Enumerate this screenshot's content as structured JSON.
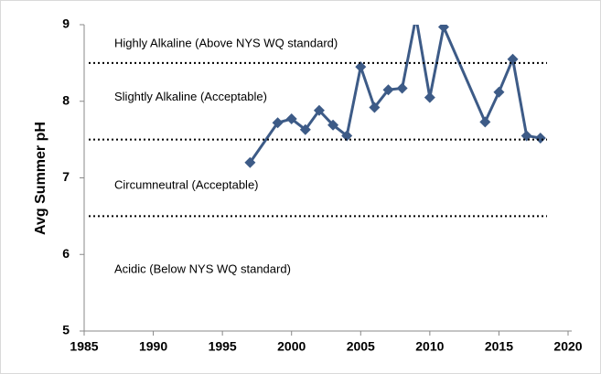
{
  "chart_data": {
    "type": "line",
    "y_label": "Avg Summer pH",
    "x": [
      1997,
      1999,
      2000,
      2001,
      2002,
      2003,
      2004,
      2005,
      2006,
      2007,
      2008,
      2009,
      2010,
      2011,
      2014,
      2015,
      2016,
      2017,
      2018
    ],
    "series": [
      {
        "name": "Avg Summer pH",
        "color": "#3d5b87",
        "values": [
          7.2,
          7.72,
          7.77,
          7.63,
          7.88,
          7.69,
          7.55,
          8.45,
          7.92,
          8.15,
          8.17,
          9.1,
          8.05,
          8.97,
          7.73,
          8.12,
          8.55,
          7.55,
          7.52
        ]
      }
    ],
    "xlim": [
      1985,
      2020
    ],
    "xticks": [
      1985,
      1990,
      1995,
      2000,
      2005,
      2010,
      2015,
      2020
    ],
    "ylim": [
      5,
      9
    ],
    "yticks": [
      5,
      6,
      7,
      8,
      9
    ],
    "reference_lines": [
      8.5,
      7.5,
      6.5
    ],
    "annotations": [
      {
        "text": "Highly Alkaline (Above NYS WQ standard)",
        "y": 8.75
      },
      {
        "text": "Slightly Alkaline (Acceptable)",
        "y": 8.05
      },
      {
        "text": "Circumneutral (Acceptable)",
        "y": 6.9
      },
      {
        "text": "Acidic (Below NYS WQ standard)",
        "y": 5.8
      }
    ]
  }
}
